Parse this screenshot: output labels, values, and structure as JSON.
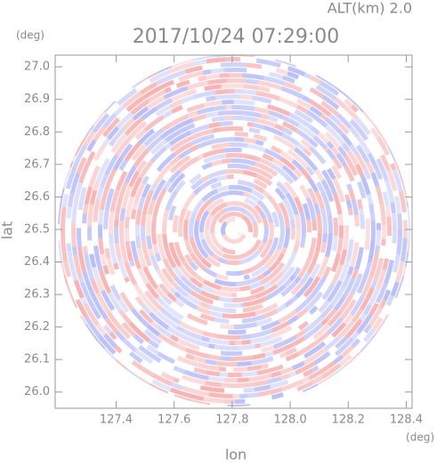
{
  "chart_data": {
    "type": "radar-ppi",
    "title": "2017/10/24 07:29:00",
    "subtitle": "ALT(km) 2.0",
    "y_unit": "(deg)",
    "x_unit": "(deg)",
    "xlabel": "lon",
    "ylabel": "lat",
    "xlim": [
      127.19,
      128.42
    ],
    "ylim": [
      25.95,
      27.036
    ],
    "xticks": [
      127.4,
      127.6,
      127.8,
      {
        "value": 128,
        "label": "128.0"
      },
      128.2,
      128.4
    ],
    "yticks": [
      {
        "value": 26,
        "label": "26.0"
      },
      26.1,
      26.2,
      26.3,
      26.4,
      26.5,
      26.6,
      26.7,
      26.8,
      26.9,
      {
        "value": 27,
        "label": "27.0"
      }
    ],
    "colors": [
      "#f7b3b3",
      "#b9bff7"
    ]
  }
}
